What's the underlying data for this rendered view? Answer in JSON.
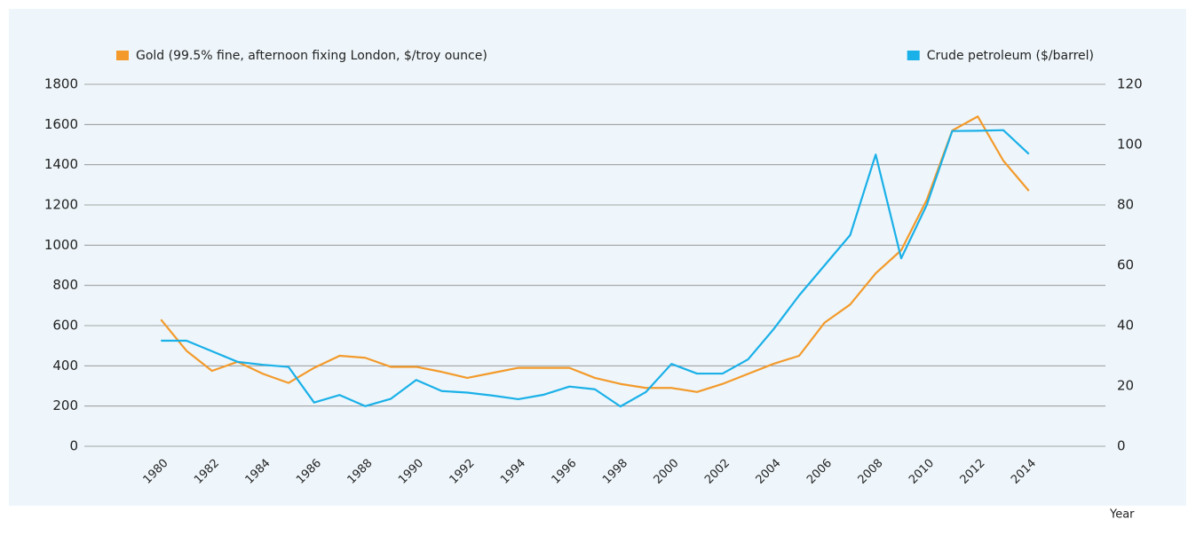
{
  "chart_data": {
    "type": "line",
    "x": [
      1980,
      1981,
      1982,
      1983,
      1984,
      1985,
      1986,
      1987,
      1988,
      1989,
      1990,
      1991,
      1992,
      1993,
      1994,
      1995,
      1996,
      1997,
      1998,
      1999,
      2000,
      2001,
      2002,
      2003,
      2004,
      2005,
      2006,
      2007,
      2008,
      2009,
      2010,
      2011,
      2012,
      2013,
      2014
    ],
    "series": [
      {
        "name": "Gold (99.5% fine, afternoon fixing London, $/troy ounce)",
        "color": "#f39a2b",
        "axis": "y",
        "values": [
          630,
          475,
          375,
          420,
          360,
          315,
          390,
          450,
          440,
          395,
          395,
          370,
          340,
          365,
          390,
          390,
          390,
          340,
          310,
          290,
          290,
          270,
          310,
          360,
          410,
          450,
          615,
          705,
          860,
          975,
          1225,
          1570,
          1640,
          1420,
          1270
        ]
      },
      {
        "name": "Crude petroleum ($/barrel)",
        "color": "#1ab0e8",
        "axis": "y2",
        "values": [
          35,
          35,
          31.5,
          28,
          27,
          26.3,
          14.5,
          17,
          13.3,
          15.7,
          22,
          18.3,
          17.8,
          16.8,
          15.6,
          17.1,
          19.8,
          18.9,
          13.2,
          18,
          27.3,
          24.1,
          24.1,
          28.8,
          38.8,
          50,
          60,
          70,
          96.7,
          62.3,
          80,
          104.5,
          104.6,
          104.8,
          96.9
        ]
      }
    ],
    "xlabel": "Year",
    "xlim": [
      1977,
      2017
    ],
    "xticks": [
      1980,
      1982,
      1984,
      1986,
      1988,
      1990,
      1992,
      1994,
      1996,
      1998,
      2000,
      2002,
      2004,
      2006,
      2008,
      2010,
      2012,
      2014
    ],
    "ylim": [
      0,
      1800
    ],
    "yticks": [
      0,
      200,
      400,
      600,
      800,
      1000,
      1200,
      1400,
      1600,
      1800
    ],
    "y2lim": [
      0,
      120
    ],
    "y2ticks": [
      0,
      20,
      40,
      60,
      80,
      100,
      120
    ],
    "grid": true
  }
}
